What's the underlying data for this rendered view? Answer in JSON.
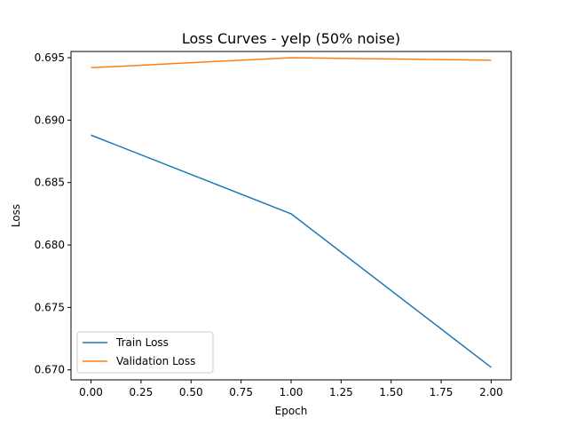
{
  "chart_data": {
    "type": "line",
    "title": "Loss Curves - yelp (50% noise)",
    "xlabel": "Epoch",
    "ylabel": "Loss",
    "xlim": [
      -0.1,
      2.1
    ],
    "ylim": [
      0.6692,
      0.6955
    ],
    "xticks": [
      0.0,
      0.25,
      0.5,
      0.75,
      1.0,
      1.25,
      1.5,
      1.75,
      2.0
    ],
    "xtick_labels": [
      "0.00",
      "0.25",
      "0.50",
      "0.75",
      "1.00",
      "1.25",
      "1.50",
      "1.75",
      "2.00"
    ],
    "yticks": [
      0.67,
      0.675,
      0.68,
      0.685,
      0.69,
      0.695
    ],
    "ytick_labels": [
      "0.670",
      "0.675",
      "0.680",
      "0.685",
      "0.690",
      "0.695"
    ],
    "x": [
      0,
      1,
      2
    ],
    "series": [
      {
        "name": "Train Loss",
        "color": "#1f77b4",
        "values": [
          0.6888,
          0.6825,
          0.6702
        ]
      },
      {
        "name": "Validation Loss",
        "color": "#ff7f0e",
        "values": [
          0.6942,
          0.695,
          0.6948
        ]
      }
    ],
    "grid": false,
    "legend_position": "lower-left"
  }
}
